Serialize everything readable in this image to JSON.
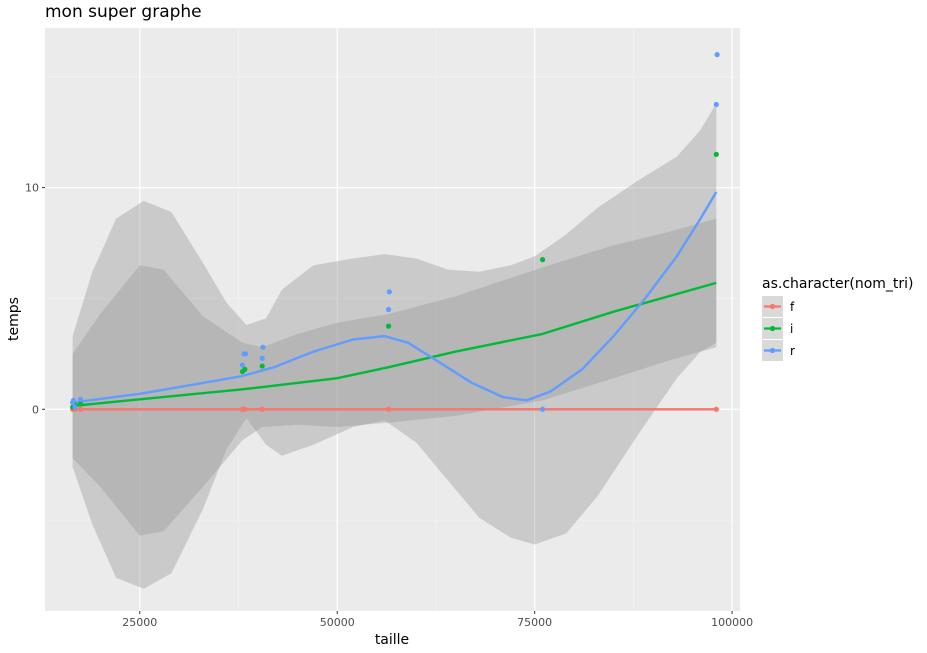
{
  "chart_data": {
    "type": "scatter",
    "title": "mon super graphe",
    "xlabel": "taille",
    "ylabel": "temps",
    "xlim": [
      13000,
      101000
    ],
    "ylim": [
      -9.1,
      17.2
    ],
    "x_ticks": [
      25000,
      50000,
      75000,
      100000
    ],
    "x_tick_labels": [
      "25000",
      "50000",
      "75000",
      "100000"
    ],
    "y_ticks": [
      0,
      10
    ],
    "y_tick_labels": [
      "0",
      "10"
    ],
    "grid": true,
    "legend": {
      "title": "as.character(nom_tri)",
      "position": "right",
      "entries": [
        "f",
        "i",
        "r"
      ]
    },
    "series": [
      {
        "name": "f",
        "color": "#F8766D",
        "points": [
          [
            16500,
            0.0
          ],
          [
            16800,
            0.0
          ],
          [
            17500,
            0.0
          ],
          [
            38000,
            0.0
          ],
          [
            38300,
            0.0
          ],
          [
            40500,
            0.0
          ],
          [
            56500,
            0.0
          ],
          [
            76000,
            0.0
          ],
          [
            98000,
            0.0
          ]
        ],
        "smooth": [
          [
            16500,
            0.0
          ],
          [
            98000,
            0.0
          ]
        ],
        "band": [
          [
            16500,
            -0.05,
            0.05
          ],
          [
            98000,
            -0.05,
            0.05
          ]
        ]
      },
      {
        "name": "i",
        "color": "#00BA38",
        "points": [
          [
            16500,
            0.1
          ],
          [
            16800,
            0.2
          ],
          [
            17500,
            0.25
          ],
          [
            38000,
            1.7
          ],
          [
            38300,
            1.8
          ],
          [
            40500,
            1.95
          ],
          [
            56500,
            3.75
          ],
          [
            76000,
            6.75
          ],
          [
            98000,
            11.5
          ]
        ],
        "smooth": [
          [
            16500,
            0.15
          ],
          [
            25000,
            0.45
          ],
          [
            38000,
            0.9
          ],
          [
            40500,
            1.0
          ],
          [
            50000,
            1.4
          ],
          [
            56500,
            1.9
          ],
          [
            65000,
            2.6
          ],
          [
            76000,
            3.4
          ],
          [
            85000,
            4.4
          ],
          [
            98000,
            5.7
          ]
        ],
        "band": [
          [
            16500,
            -2.2,
            2.5
          ],
          [
            20000,
            -3.5,
            4.3
          ],
          [
            25000,
            -5.7,
            6.5
          ],
          [
            28000,
            -5.5,
            6.3
          ],
          [
            33000,
            -3.5,
            4.2
          ],
          [
            38000,
            -1.4,
            3.0
          ],
          [
            40500,
            -0.8,
            2.8
          ],
          [
            45000,
            -0.7,
            3.4
          ],
          [
            50000,
            -0.8,
            3.9
          ],
          [
            56500,
            -0.6,
            4.3
          ],
          [
            65000,
            -0.3,
            5.1
          ],
          [
            76000,
            0.4,
            6.4
          ],
          [
            85000,
            1.4,
            7.4
          ],
          [
            92000,
            2.2,
            8.0
          ],
          [
            98000,
            2.8,
            8.6
          ]
        ]
      },
      {
        "name": "r",
        "color": "#619CFF",
        "points": [
          [
            16500,
            0.3
          ],
          [
            16600,
            0.4
          ],
          [
            16800,
            0.1
          ],
          [
            17500,
            0.45
          ],
          [
            38000,
            2.0
          ],
          [
            38200,
            2.5
          ],
          [
            38400,
            2.5
          ],
          [
            40500,
            2.3
          ],
          [
            40600,
            2.8
          ],
          [
            56500,
            4.5
          ],
          [
            56600,
            5.3
          ],
          [
            76000,
            0.0
          ],
          [
            98000,
            13.75
          ],
          [
            98100,
            16.0
          ]
        ],
        "smooth": [
          [
            16500,
            0.3
          ],
          [
            25000,
            0.7
          ],
          [
            30000,
            1.0
          ],
          [
            38000,
            1.5
          ],
          [
            42000,
            1.9
          ],
          [
            47000,
            2.6
          ],
          [
            52000,
            3.15
          ],
          [
            56000,
            3.3
          ],
          [
            59000,
            3.0
          ],
          [
            63000,
            2.1
          ],
          [
            67000,
            1.2
          ],
          [
            71000,
            0.55
          ],
          [
            74000,
            0.4
          ],
          [
            77000,
            0.8
          ],
          [
            81000,
            1.8
          ],
          [
            85000,
            3.3
          ],
          [
            89000,
            5.0
          ],
          [
            93000,
            6.9
          ],
          [
            96000,
            8.6
          ],
          [
            98000,
            9.8
          ]
        ],
        "band": [
          [
            16500,
            -2.6,
            3.3
          ],
          [
            19000,
            -5.2,
            6.2
          ],
          [
            22000,
            -7.6,
            8.6
          ],
          [
            25500,
            -8.1,
            9.4
          ],
          [
            29000,
            -7.4,
            8.9
          ],
          [
            33000,
            -4.5,
            6.6
          ],
          [
            36000,
            -1.8,
            4.8
          ],
          [
            38500,
            -0.4,
            3.8
          ],
          [
            41000,
            -1.6,
            4.1
          ],
          [
            43000,
            -2.1,
            5.4
          ],
          [
            47000,
            -1.6,
            6.5
          ],
          [
            52000,
            -0.8,
            6.8
          ],
          [
            56000,
            -0.5,
            7.0
          ],
          [
            60000,
            -1.5,
            6.8
          ],
          [
            64000,
            -3.2,
            6.3
          ],
          [
            68000,
            -4.9,
            6.2
          ],
          [
            72000,
            -5.8,
            6.5
          ],
          [
            75000,
            -6.1,
            6.9
          ],
          [
            79000,
            -5.6,
            7.9
          ],
          [
            83000,
            -3.9,
            9.1
          ],
          [
            88000,
            -1.2,
            10.3
          ],
          [
            93000,
            1.4,
            11.4
          ],
          [
            96000,
            2.6,
            12.6
          ],
          [
            98000,
            3.0,
            13.8
          ]
        ]
      }
    ]
  }
}
